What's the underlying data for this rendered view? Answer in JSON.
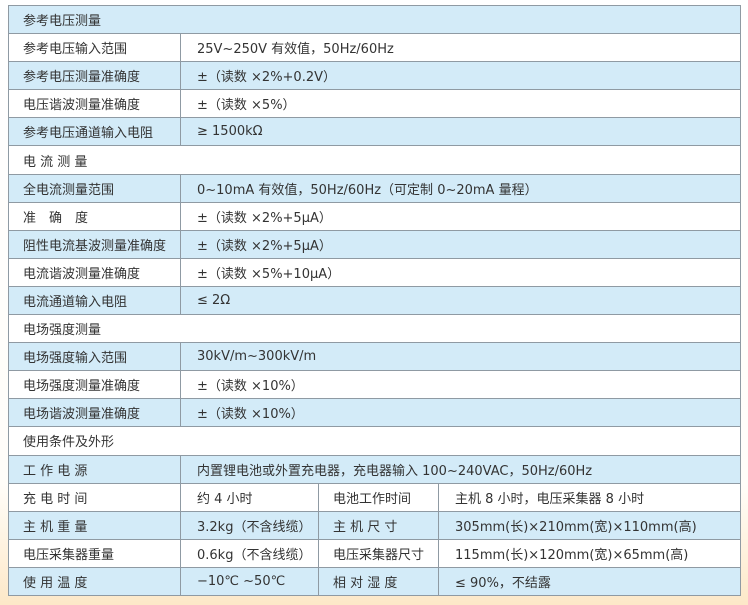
{
  "rows": [
    {
      "type": "section",
      "label": "参考电压测量"
    },
    {
      "type": "pair",
      "label": "参考电压输入范围",
      "value": "25V~250V 有效值，50Hz/60Hz"
    },
    {
      "type": "pair",
      "label": "参考电压测量准确度",
      "value": "±（读数 ×2%+0.2V）"
    },
    {
      "type": "pair",
      "label": "电压谐波测量准确度",
      "value": "±（读数 ×5%）"
    },
    {
      "type": "pair",
      "label": "参考电压通道输入电阻",
      "value": "≥ 1500kΩ"
    },
    {
      "type": "section",
      "label": "电 流 测 量"
    },
    {
      "type": "pair",
      "label": "全电流测量范围",
      "value": "0~10mA 有效值，50Hz/60Hz（可定制 0~20mA 量程）"
    },
    {
      "type": "pair",
      "label": "准　确　度",
      "value": "±（读数 ×2%+5μA）"
    },
    {
      "type": "pair",
      "label": "阻性电流基波测量准确度",
      "value": "±（读数 ×2%+5μA）"
    },
    {
      "type": "pair",
      "label": "电流谐波测量准确度",
      "value": "±（读数 ×5%+10μA）"
    },
    {
      "type": "pair",
      "label": "电流通道输入电阻",
      "value": "≤ 2Ω"
    },
    {
      "type": "section",
      "label": "电场强度测量"
    },
    {
      "type": "pair",
      "label": "电场强度输入范围",
      "value": "30kV/m~300kV/m"
    },
    {
      "type": "pair",
      "label": "电场强度测量准确度",
      "value": "±（读数 ×10%）"
    },
    {
      "type": "pair",
      "label": "电场谐波测量准确度",
      "value": "±（读数 ×10%）"
    },
    {
      "type": "section",
      "label": "使用条件及外形"
    },
    {
      "type": "pair",
      "label": "工 作 电 源",
      "value": "内置锂电池或外置充电器，充电器输入 100~240VAC，50Hz/60Hz"
    },
    {
      "type": "quad",
      "label": "充 电 时 间",
      "value": "约 4 小时",
      "label2": "电池工作时间",
      "value2": "主机 8 小时，电压采集器 8 小时"
    },
    {
      "type": "quad",
      "label": "主 机 重 量",
      "value": "3.2kg（不含线缆）",
      "label2": "主 机 尺 寸",
      "value2": "305mm(长)×210mm(宽)×110mm(高)"
    },
    {
      "type": "quad",
      "label": "电压采集器重量",
      "value": "0.6kg（不含线缆）",
      "label2": "电压采集器尺寸",
      "value2": "115mm(长)×120mm(宽)×65mm(高)"
    },
    {
      "type": "quad",
      "label": "使 用 温 度",
      "value": "−10℃ ~50℃",
      "label2": "相 对 湿 度",
      "value2": "≤ 90%，不结露"
    }
  ],
  "colors": {
    "row_blue": "#d3ebf8",
    "row_white": "#ffffff",
    "border": "#8f9aa3",
    "text": "#333333"
  }
}
